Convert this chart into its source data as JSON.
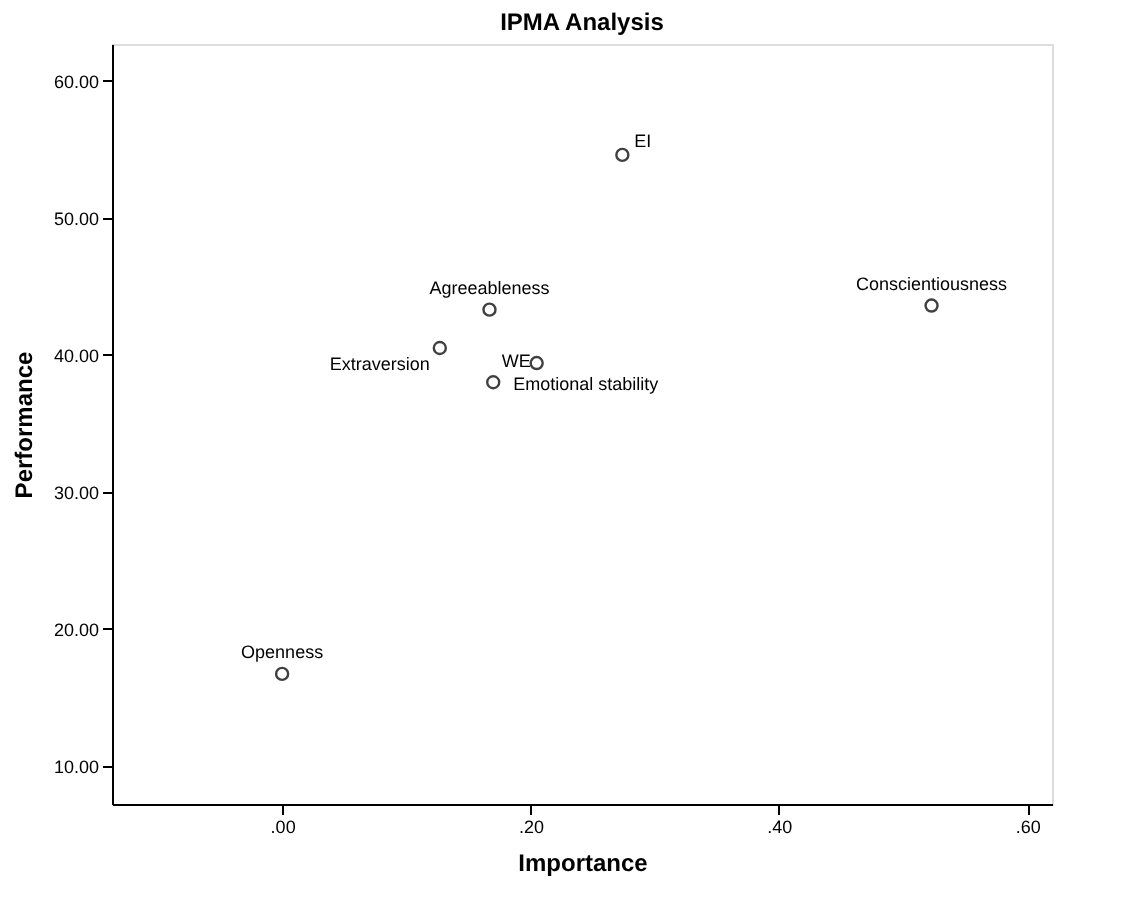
{
  "chart_data": {
    "type": "scatter",
    "title": "IPMA Analysis",
    "xlabel": "Importance",
    "ylabel": "Performance",
    "x": [
      0.0,
      0.127,
      0.167,
      0.205,
      0.17,
      0.274,
      0.523
    ],
    "series": [
      {
        "color": "#404040",
        "values": [
          16.7,
          40.5,
          43.3,
          39.4,
          38.0,
          54.6,
          43.6
        ]
      }
    ],
    "annotations": [
      {
        "text": "Openness",
        "x": 0.0,
        "y": 16.7
      },
      {
        "text": "Extraversion",
        "x": 0.127,
        "y": 40.5
      },
      {
        "text": "Agreeableness",
        "x": 0.167,
        "y": 43.3
      },
      {
        "text": "WE",
        "x": 0.205,
        "y": 39.4
      },
      {
        "text": "Emotional stability",
        "x": 0.17,
        "y": 38.0
      },
      {
        "text": "EI",
        "x": 0.274,
        "y": 54.6
      },
      {
        "text": "Conscientiousness",
        "x": 0.523,
        "y": 43.6
      }
    ],
    "xlim": [
      -0.137,
      0.62
    ],
    "xticks": [
      {
        "value": 0.0,
        "label": ".00"
      },
      {
        "value": 0.2,
        "label": ".20"
      },
      {
        "value": 0.4,
        "label": ".40"
      },
      {
        "value": 0.6,
        "label": ".60"
      }
    ],
    "ylim": [
      7.2,
      62.7
    ],
    "yticks": [
      {
        "value": 10,
        "label": "10.00"
      },
      {
        "value": 20,
        "label": "20.00"
      },
      {
        "value": 30,
        "label": "30.00"
      },
      {
        "value": 40,
        "label": "40.00"
      },
      {
        "value": 50,
        "label": "50.00"
      },
      {
        "value": 60,
        "label": "60.00"
      }
    ],
    "grid": false,
    "marker": "circle"
  }
}
